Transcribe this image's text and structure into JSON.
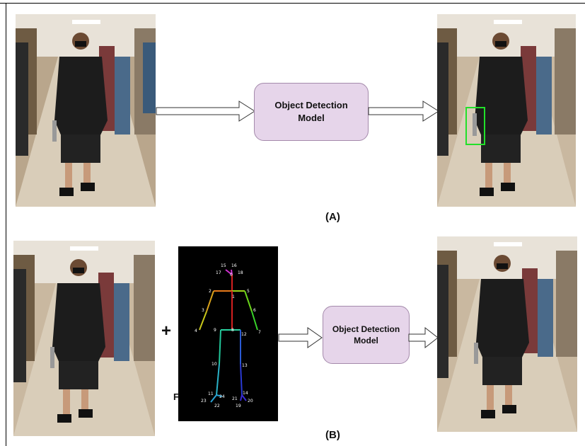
{
  "panel_a": {
    "label": "(A)",
    "model_box": {
      "line1": "Object Detection",
      "line2": "Model"
    },
    "detection_color": "#22e02a"
  },
  "panel_b": {
    "label": "(B)",
    "plus": "+",
    "stray_text": "F",
    "model_box": {
      "line1": "Object Detection",
      "line2": "Model"
    },
    "keypoints": [
      "15",
      "16",
      "17",
      "0",
      "18",
      "2",
      "1",
      "5",
      "3",
      "6",
      "4",
      "7",
      "9",
      "8",
      "12",
      "10",
      "13",
      "11",
      "24",
      "14",
      "23",
      "22",
      "21",
      "20",
      "19"
    ]
  },
  "colors": {
    "model_fill": "#e6d5ea",
    "model_border": "#a48aab",
    "pose_background": "#000000"
  }
}
